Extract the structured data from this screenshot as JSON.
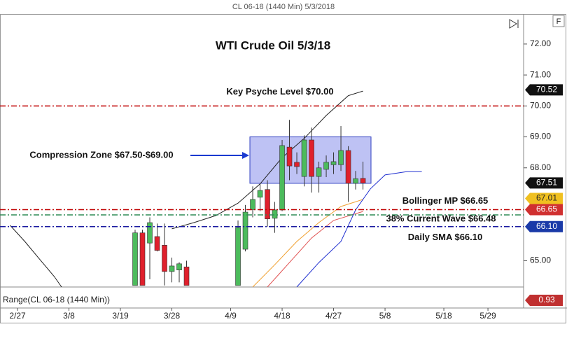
{
  "header": "CL 06-18 (1440 Min)  5/3/2018",
  "chart_data": {
    "type": "candlestick",
    "title": "WTI Crude Oil 5/3/18",
    "up_color": "#4cbb5c",
    "down_color": "#e0202c",
    "xlim": [
      -2.38,
      68.85
    ],
    "ylim": [
      64.15,
      72.97
    ],
    "yticks": [
      {
        "value": 65,
        "label": "65.00"
      },
      {
        "value": 68,
        "label": "68.00"
      },
      {
        "value": 69,
        "label": "69.00"
      },
      {
        "value": 70,
        "label": "70.00"
      },
      {
        "value": 71,
        "label": "71.00"
      },
      {
        "value": 72,
        "label": "72.00"
      }
    ],
    "xticks": [
      {
        "value": 0,
        "label": "2/27"
      },
      {
        "value": 7,
        "label": "3/8"
      },
      {
        "value": 14,
        "label": "3/19"
      },
      {
        "value": 21,
        "label": "3/28"
      },
      {
        "value": 29,
        "label": "4/9"
      },
      {
        "value": 36,
        "label": "4/18"
      },
      {
        "value": 43,
        "label": "4/27"
      },
      {
        "value": 50,
        "label": "5/8"
      },
      {
        "value": 58,
        "label": "5/18"
      },
      {
        "value": 64,
        "label": "5/29"
      }
    ],
    "candles": {
      "x": [
        16,
        17,
        18,
        19,
        20,
        21,
        22,
        23,
        30,
        31,
        32,
        33,
        34,
        35,
        36,
        37,
        38,
        39,
        40,
        41,
        42,
        43,
        44,
        45,
        46,
        47
      ],
      "open": [
        64.2,
        65.9,
        65.57,
        65.78,
        65.5,
        64.65,
        64.7,
        64.8,
        64.2,
        65.37,
        66.65,
        67.05,
        67.3,
        66.37,
        66.64,
        68.67,
        68.18,
        67.72,
        68.9,
        67.72,
        67.95,
        68.1,
        68.1,
        68.56,
        67.5,
        67.66
      ],
      "high": [
        66.0,
        66.0,
        66.4,
        66.2,
        66.2,
        65.1,
        64.95,
        65.0,
        66.3,
        66.8,
        67.4,
        67.5,
        67.6,
        66.9,
        68.9,
        69.55,
        68.5,
        69.05,
        69.3,
        68.2,
        68.4,
        68.5,
        69.35,
        68.7,
        67.9,
        68.2
      ],
      "low": [
        64.2,
        64.2,
        64.4,
        65.3,
        64.2,
        64.3,
        64.3,
        64.2,
        64.2,
        65.3,
        66.4,
        66.6,
        66.1,
        65.9,
        66.6,
        67.6,
        67.8,
        67.4,
        67.2,
        67.2,
        67.7,
        67.8,
        67.9,
        66.9,
        67.3,
        67.3
      ],
      "close": [
        65.9,
        64.2,
        66.23,
        65.33,
        64.65,
        64.83,
        64.9,
        64.2,
        66.07,
        66.57,
        66.98,
        67.27,
        66.35,
        66.64,
        68.72,
        68.06,
        68.04,
        68.9,
        67.72,
        68.0,
        68.18,
        68.2,
        68.56,
        67.5,
        67.65,
        67.51
      ]
    },
    "lines": [
      {
        "color": "#222222",
        "x": [
          -1,
          1,
          3,
          5,
          6
        ],
        "values": [
          66.14,
          65.62,
          65.05,
          64.49,
          64.15
        ]
      },
      {
        "color": "#222222",
        "x": [
          21,
          24,
          27,
          30,
          33,
          36,
          39,
          42,
          45,
          47
        ],
        "values": [
          66.03,
          66.23,
          66.46,
          66.86,
          67.48,
          68.33,
          68.95,
          69.69,
          70.33,
          70.48
        ]
      },
      {
        "color": "#f0a030",
        "x": [
          32,
          35,
          38,
          41,
          44,
          47
        ],
        "values": [
          64.15,
          64.87,
          65.62,
          66.23,
          66.75,
          66.98
        ]
      },
      {
        "color": "#e05050",
        "x": [
          34,
          37,
          40,
          43,
          47
        ],
        "values": [
          64.15,
          64.94,
          65.73,
          66.3,
          66.59
        ]
      },
      {
        "color": "#2030d0",
        "x": [
          38,
          41,
          44,
          46,
          48,
          50,
          53,
          55
        ],
        "values": [
          64.15,
          64.94,
          65.62,
          66.64,
          67.32,
          67.77,
          67.88,
          67.88
        ]
      }
    ],
    "zone": [
      67.5,
      69.0
    ],
    "zone_label": "Compression Zone $67.50-$69.00",
    "levels": [
      {
        "value": 70.0,
        "color": "#c00000",
        "label": "Key Psyche Level $70.00"
      },
      {
        "value": 66.65,
        "color": "#c00000",
        "label": "Bollinger MP $66.65"
      },
      {
        "value": 66.48,
        "color": "#2e8b57",
        "label": "38% Current Wave $66.48"
      },
      {
        "value": 66.1,
        "color": "#1a1aa0",
        "label": "Daily SMA $66.10"
      }
    ],
    "price_tags": [
      {
        "value": 70.52,
        "color": "#111111"
      },
      {
        "value": 67.51,
        "color": "#111111"
      },
      {
        "value": 67.01,
        "color": "#f0c020"
      },
      {
        "value": 66.65,
        "color": "#d03030"
      },
      {
        "value": 66.1,
        "label": "66.10",
        "color": "#1a3aa8"
      }
    ],
    "range_label": "Range(CL 06-18 (1440 Min))",
    "range_tag": 0.93
  }
}
